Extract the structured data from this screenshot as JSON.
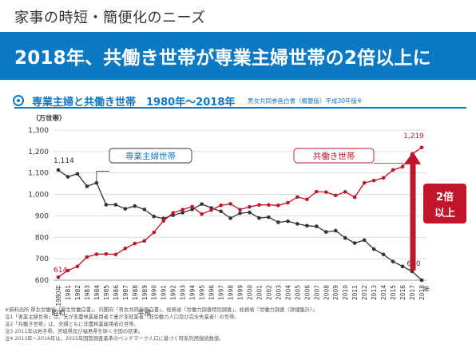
{
  "header": {
    "title": "家事の時短・簡便化のニーズ",
    "headline": "2018年、共働き世帯が専業主婦世帯の2倍以上に"
  },
  "subtitle": "専業主婦と共働き世帯　1980年〜2018年",
  "source": "男女共同参画白書（概要版）平成30年版※",
  "colors": {
    "accent": "#0d79c4",
    "dual": "#c0152a",
    "single": "#333333"
  },
  "chart_data": {
    "type": "line",
    "ylabel": "（万世帯）",
    "ylim": [
      600,
      1300
    ],
    "yticks": [
      600,
      700,
      800,
      900,
      1000,
      1100,
      1200,
      1300
    ],
    "x_unit_label": "年",
    "era_labels": [
      {
        "label": "昭和",
        "at": "1980"
      },
      {
        "label": "平成",
        "at": "1989"
      }
    ],
    "categories": [
      "1980年",
      "1981",
      "1982",
      "1983",
      "1984",
      "1985",
      "1986",
      "1987",
      "1988",
      "1989",
      "1990",
      "1991",
      "1992",
      "1993",
      "1994",
      "1995",
      "1996",
      "1997",
      "1998",
      "1999",
      "2000",
      "2001",
      "2002",
      "2003",
      "2004",
      "2005",
      "2006",
      "2007",
      "2008",
      "2009",
      "2010",
      "2011",
      "2012",
      "2013",
      "2014",
      "2015",
      "2016",
      "2017",
      "2018"
    ],
    "series": [
      {
        "name": "専業主婦世帯",
        "values": [
          1114,
          1082,
          1096,
          1038,
          1054,
          952,
          952,
          933,
          946,
          930,
          897,
          888,
          903,
          915,
          930,
          955,
          937,
          921,
          889,
          912,
          916,
          890,
          894,
          870,
          875,
          863,
          854,
          851,
          825,
          831,
          797,
          773,
          787,
          745,
          720,
          687,
          664,
          641,
          600
        ],
        "start_label": "1,114",
        "end_label": "600"
      },
      {
        "name": "共働き世帯",
        "values": [
          614,
          645,
          664,
          708,
          721,
          722,
          720,
          748,
          771,
          783,
          823,
          877,
          914,
          929,
          943,
          908,
          927,
          949,
          956,
          929,
          942,
          951,
          951,
          949,
          961,
          988,
          977,
          1013,
          1011,
          995,
          1012,
          987,
          1054,
          1065,
          1077,
          1114,
          1129,
          1188,
          1219
        ],
        "start_label": "614",
        "end_label": "1,219"
      }
    ],
    "annotation": {
      "line1": "2倍",
      "line2": "以上"
    }
  },
  "notes": [
    "※資料出所 厚生労働省「厚生労働白書」、内閣府「男女共同参画白書」、総務省「労働力調査特別調査」、総務省「労働力調査（詳細集計）」",
    "注1「専業主婦世帯」は、夫が非農林業雇用者で妻が非就業者（非労働力人口及び完全失業者）の世帯。",
    "注2「共働き世帯」は、夫婦ともに非農林業雇用者の世帯。",
    "注3 2011年は岩手県、宮城県及び福島県を除く全国の結果。",
    "注4 2013年〜2016年は、2015年国勢調査基準のベンチマーク人口に基づく時系列用接続数値。"
  ]
}
